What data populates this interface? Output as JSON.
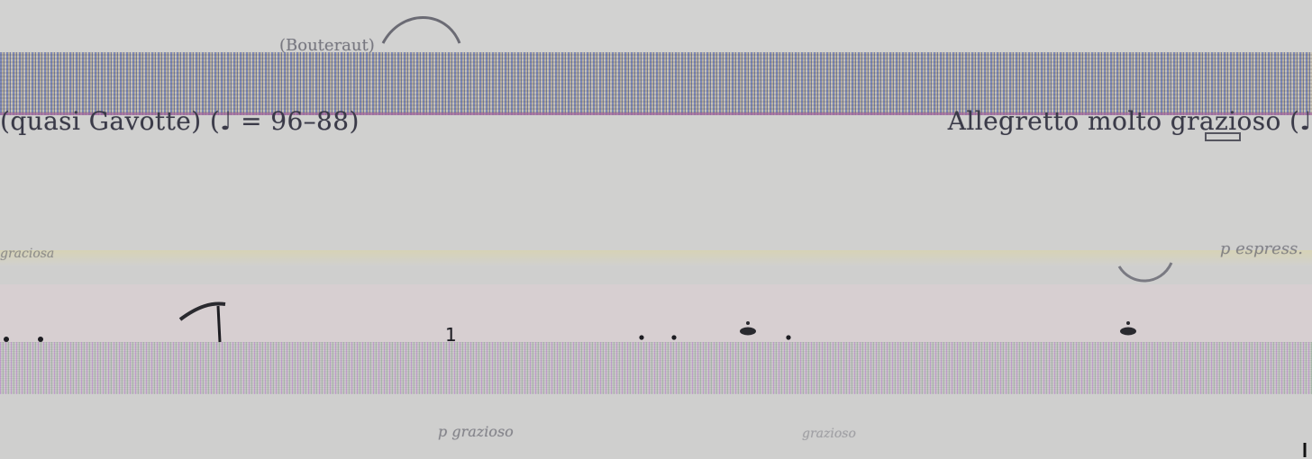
{
  "score_fragment": {
    "tempo_left": "(quasi Gavotte) (♩ = 96–88)",
    "tempo_right": "Allegretto molto grazioso (♩",
    "top_caption": "(Bouteraut)",
    "measure_mark": "1",
    "bottom_left_text": "p grazioso",
    "bottom_right_text": "grazioso",
    "yellow_left_text": "graciosa",
    "yellow_right_text": "p espress."
  },
  "colors": {
    "paper": "#cfcfce",
    "ink": "#3a3a48",
    "noise_blue": "#7a86b6",
    "noise_pink": "#c29ad0",
    "accent_magenta": "#a3609a"
  },
  "icons": {
    "slur": "slur-curve",
    "note": "note-head"
  }
}
